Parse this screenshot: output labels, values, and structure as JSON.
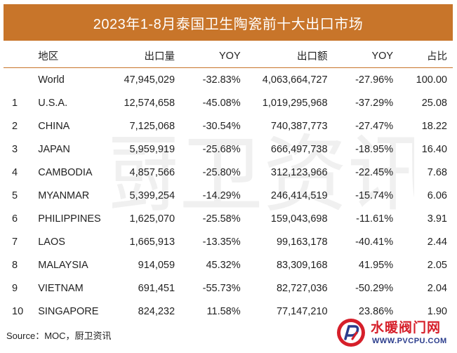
{
  "title": "2023年1-8月泰国卫生陶瓷前十大出口市场",
  "table": {
    "headers": {
      "rank": "",
      "region": "地区",
      "quantity": "出口量",
      "yoy_quantity": "YOY",
      "value": "出口额",
      "yoy_value": "YOY",
      "share": "占比"
    },
    "rows": [
      {
        "rank": "",
        "region": "World",
        "quantity": "47,945,029",
        "yoy_quantity": "-32.83%",
        "value": "4,063,664,727",
        "yoy_value": "-27.96%",
        "share": "100.00"
      },
      {
        "rank": "1",
        "region": "U.S.A.",
        "quantity": "12,574,658",
        "yoy_quantity": "-45.08%",
        "value": "1,019,295,968",
        "yoy_value": "-37.29%",
        "share": "25.08"
      },
      {
        "rank": "2",
        "region": "CHINA",
        "quantity": "7,125,068",
        "yoy_quantity": "-30.54%",
        "value": "740,387,773",
        "yoy_value": "-27.47%",
        "share": "18.22"
      },
      {
        "rank": "3",
        "region": "JAPAN",
        "quantity": "5,959,919",
        "yoy_quantity": "-25.68%",
        "value": "666,497,738",
        "yoy_value": "-18.95%",
        "share": "16.40"
      },
      {
        "rank": "4",
        "region": "CAMBODIA",
        "quantity": "4,857,566",
        "yoy_quantity": "-25.80%",
        "value": "312,123,966",
        "yoy_value": "-22.45%",
        "share": "7.68"
      },
      {
        "rank": "5",
        "region": "MYANMAR",
        "quantity": "5,399,254",
        "yoy_quantity": "-14.29%",
        "value": "246,414,519",
        "yoy_value": "-15.74%",
        "share": "6.06"
      },
      {
        "rank": "6",
        "region": "PHILIPPINES",
        "quantity": "1,625,070",
        "yoy_quantity": "-25.58%",
        "value": "159,043,698",
        "yoy_value": "-11.61%",
        "share": "3.91"
      },
      {
        "rank": "7",
        "region": "LAOS",
        "quantity": "1,665,913",
        "yoy_quantity": "-13.35%",
        "value": "99,163,178",
        "yoy_value": "-40.41%",
        "share": "2.44"
      },
      {
        "rank": "8",
        "region": "MALAYSIA",
        "quantity": "914,059",
        "yoy_quantity": "45.32%",
        "value": "83,309,168",
        "yoy_value": "41.95%",
        "share": "2.05"
      },
      {
        "rank": "9",
        "region": "VIETNAM",
        "quantity": "691,451",
        "yoy_quantity": "-55.73%",
        "value": "82,727,036",
        "yoy_value": "-50.29%",
        "share": "2.04"
      },
      {
        "rank": "10",
        "region": "SINGAPORE",
        "quantity": "824,232",
        "yoy_quantity": "11.58%",
        "value": "77,147,210",
        "yoy_value": "23.86%",
        "share": "1.90"
      }
    ]
  },
  "source": "Source：MOC，厨卫资讯",
  "watermark_text": "厨卫资讯",
  "logo": {
    "name": "水暖阀门网",
    "url": "WWW.PVCPU.COM"
  },
  "colors": {
    "title_bg": "#c8752a",
    "title_text": "#ffffff",
    "header_rule": "#c8752a",
    "logo_red": "#d61f2a",
    "logo_blue": "#2a3c8c"
  }
}
